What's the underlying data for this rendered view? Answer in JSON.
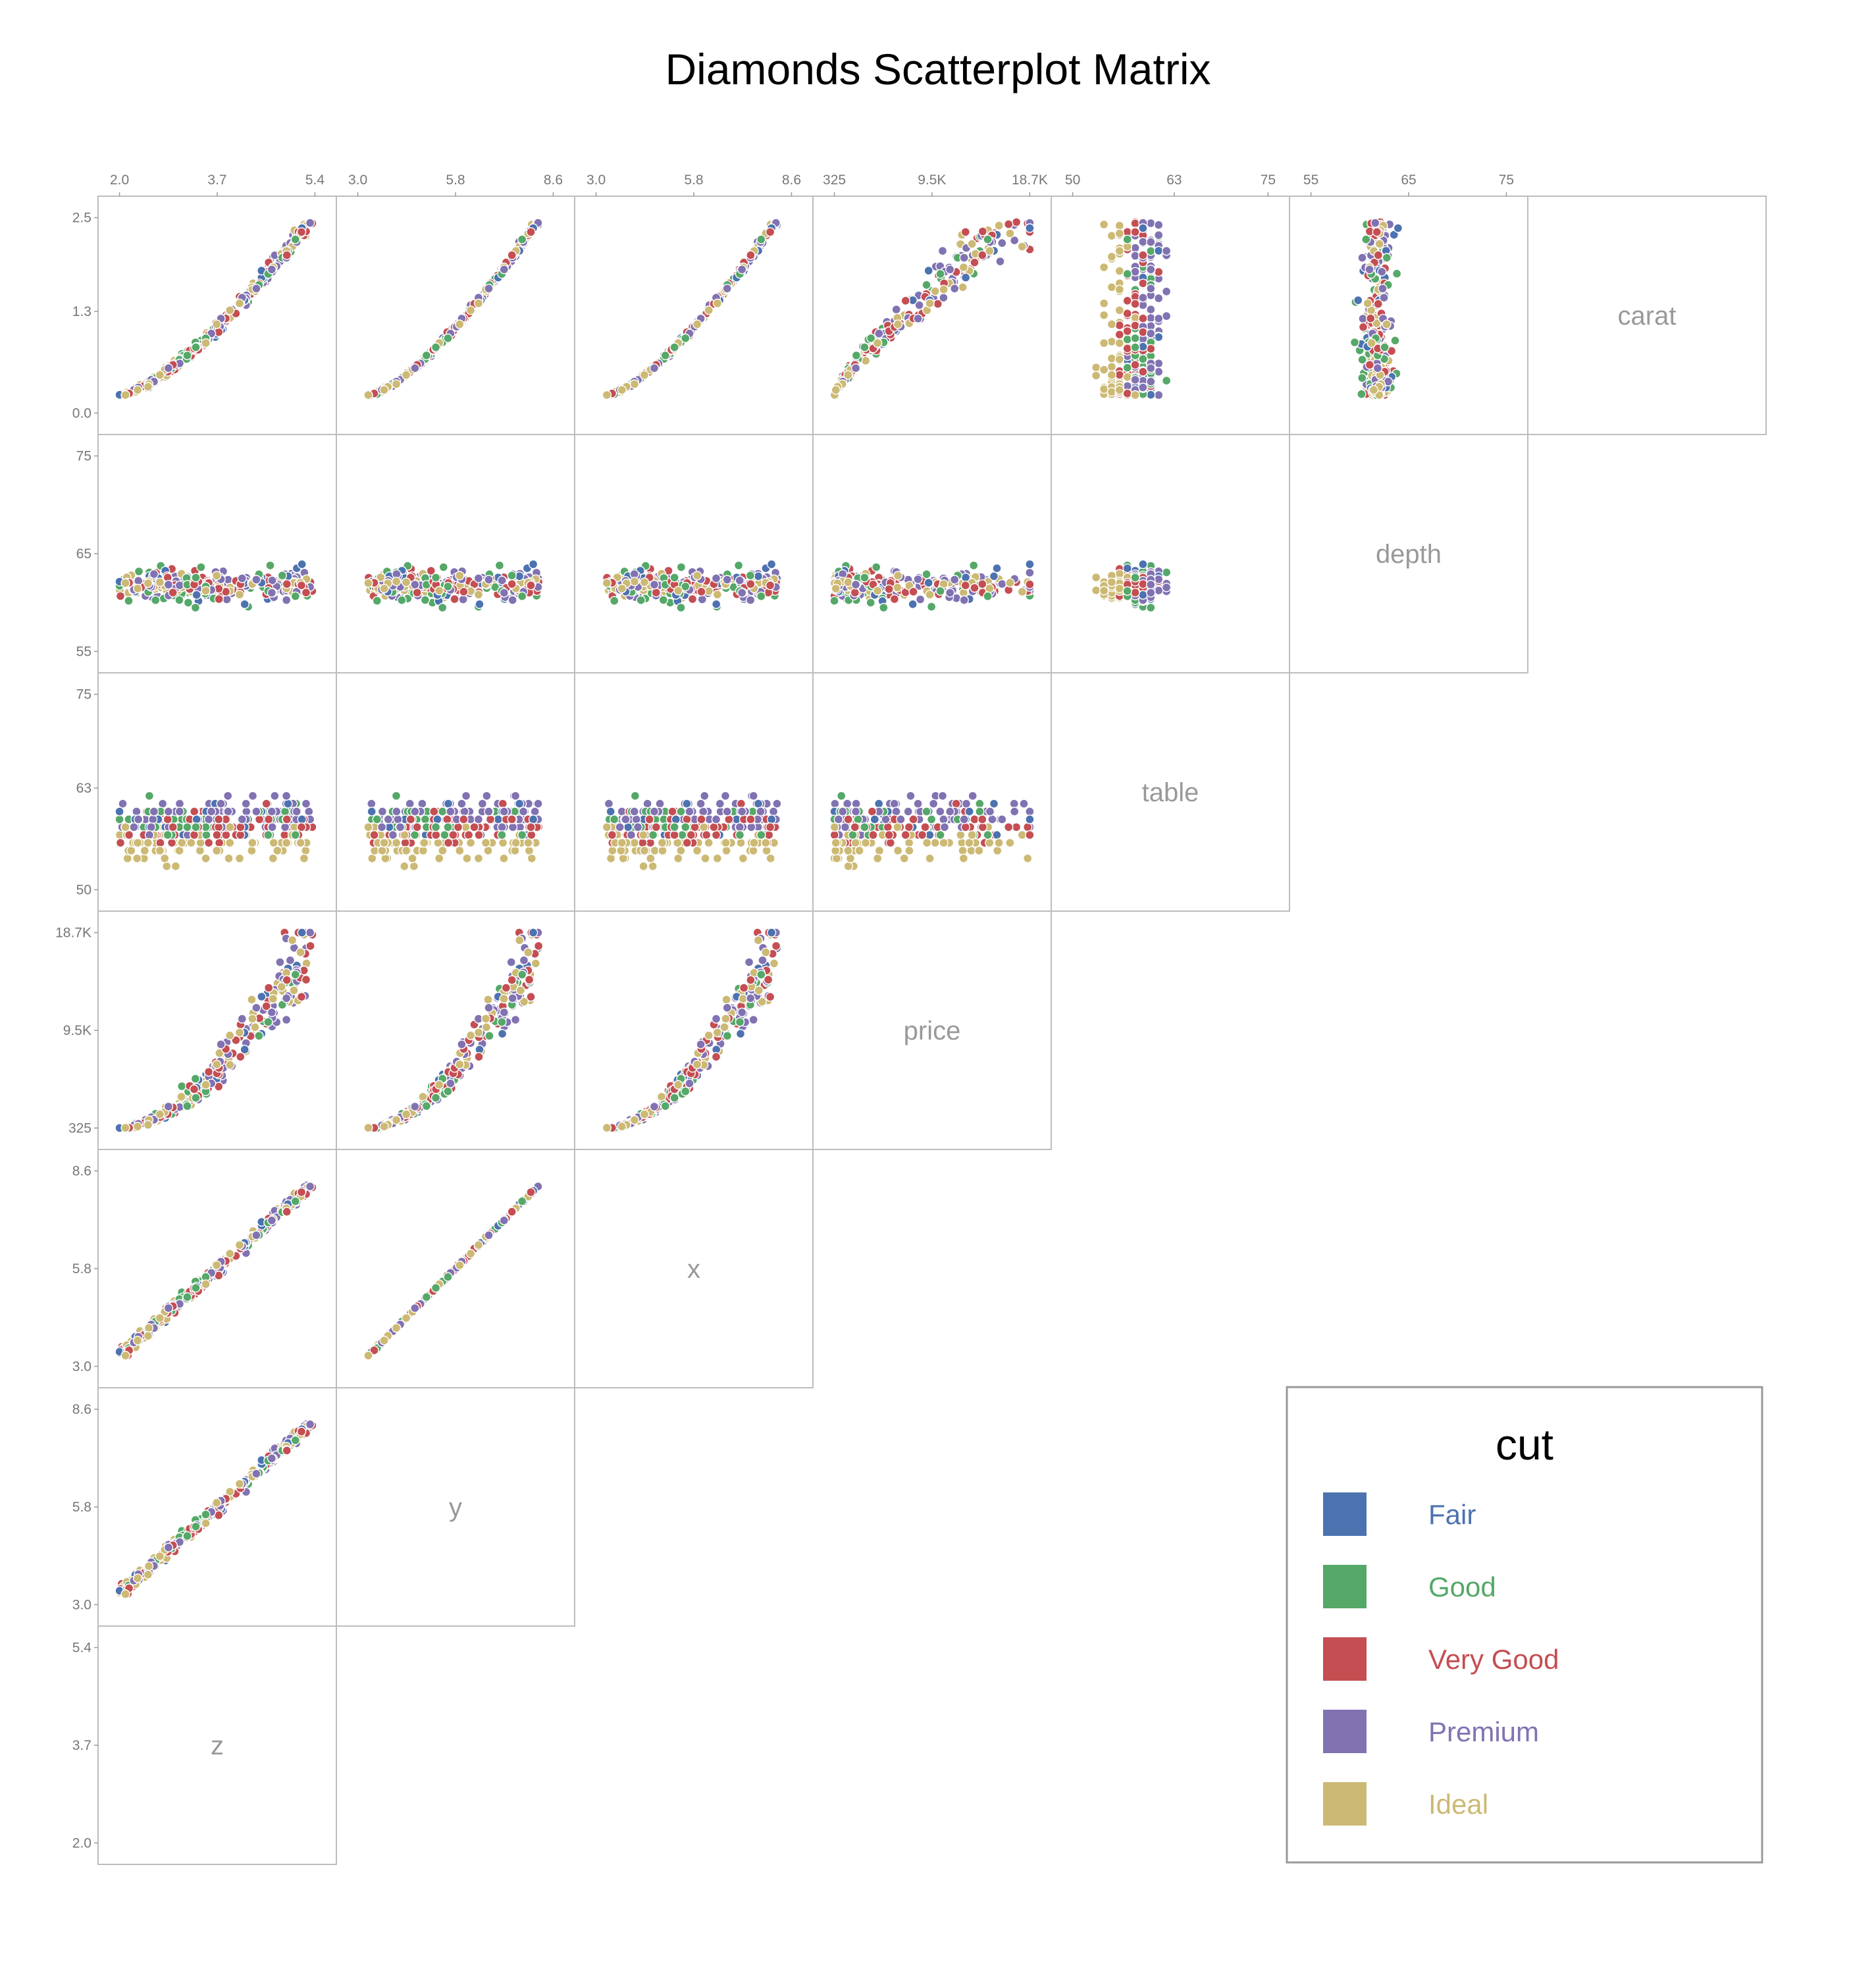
{
  "chart_data": {
    "type": "scatter",
    "title": "Diamonds Scatterplot Matrix",
    "variables": [
      "carat",
      "depth",
      "table",
      "price",
      "x",
      "y",
      "z"
    ],
    "axes": {
      "carat": {
        "range": [
          0.0,
          2.5
        ],
        "ticks": [
          {
            "v": 2.5,
            "label": "2.5"
          },
          {
            "v": 1.3,
            "label": "1.3"
          },
          {
            "v": 0.0,
            "label": "0.0"
          }
        ]
      },
      "depth": {
        "range": [
          55,
          75
        ],
        "ticks": [
          {
            "v": 75,
            "label": "75"
          },
          {
            "v": 65,
            "label": "65"
          },
          {
            "v": 55,
            "label": "55"
          }
        ]
      },
      "table": {
        "range": [
          50,
          75
        ],
        "ticks": [
          {
            "v": 75,
            "label": "75"
          },
          {
            "v": 63,
            "label": "63"
          },
          {
            "v": 50,
            "label": "50"
          }
        ]
      },
      "price": {
        "range": [
          325,
          18700
        ],
        "ticks": [
          {
            "v": 18700,
            "label": "18.7K"
          },
          {
            "v": 9500,
            "label": "9.5K"
          },
          {
            "v": 325,
            "label": "325"
          }
        ]
      },
      "x": {
        "range": [
          3.0,
          8.6
        ],
        "ticks": [
          {
            "v": 8.6,
            "label": "8.6"
          },
          {
            "v": 5.8,
            "label": "5.8"
          },
          {
            "v": 3.0,
            "label": "3.0"
          }
        ]
      },
      "y": {
        "range": [
          3.0,
          8.6
        ],
        "ticks": [
          {
            "v": 8.6,
            "label": "8.6"
          },
          {
            "v": 5.8,
            "label": "5.8"
          },
          {
            "v": 3.0,
            "label": "3.0"
          }
        ]
      },
      "z": {
        "range": [
          2.0,
          5.4
        ],
        "ticks": [
          {
            "v": 5.4,
            "label": "5.4"
          },
          {
            "v": 3.7,
            "label": "3.7"
          },
          {
            "v": 2.0,
            "label": "2.0"
          }
        ]
      }
    },
    "top_axes": [
      {
        "var": "z",
        "ticks": [
          {
            "v": 2.0,
            "label": "2.0"
          },
          {
            "v": 3.7,
            "label": "3.7"
          },
          {
            "v": 5.4,
            "label": "5.4"
          }
        ]
      },
      {
        "var": "y",
        "ticks": [
          {
            "v": 3.0,
            "label": "3.0"
          },
          {
            "v": 5.8,
            "label": "5.8"
          },
          {
            "v": 8.6,
            "label": "8.6"
          }
        ]
      },
      {
        "var": "x",
        "ticks": [
          {
            "v": 3.0,
            "label": "3.0"
          },
          {
            "v": 5.8,
            "label": "5.8"
          },
          {
            "v": 8.6,
            "label": "8.6"
          }
        ]
      },
      {
        "var": "price",
        "ticks": [
          {
            "v": 325,
            "label": "325"
          },
          {
            "v": 9500,
            "label": "9.5K"
          },
          {
            "v": 18700,
            "label": "18.7K"
          }
        ]
      },
      {
        "var": "table",
        "ticks": [
          {
            "v": 50,
            "label": "50"
          },
          {
            "v": 63,
            "label": "63"
          },
          {
            "v": 75,
            "label": "75"
          }
        ]
      },
      {
        "var": "depth",
        "ticks": [
          {
            "v": 55,
            "label": "55"
          },
          {
            "v": 65,
            "label": "65"
          },
          {
            "v": 75,
            "label": "75"
          }
        ]
      }
    ],
    "legend": {
      "title": "cut",
      "placement": "bottom-right",
      "items": [
        {
          "label": "Fair",
          "color": "#4c72b0"
        },
        {
          "label": "Good",
          "color": "#55a868"
        },
        {
          "label": "Very Good",
          "color": "#c44e52"
        },
        {
          "label": "Premium",
          "color": "#8172b2"
        },
        {
          "label": "Ideal",
          "color": "#ccb974"
        }
      ]
    },
    "point_count": 300,
    "points": []
  }
}
